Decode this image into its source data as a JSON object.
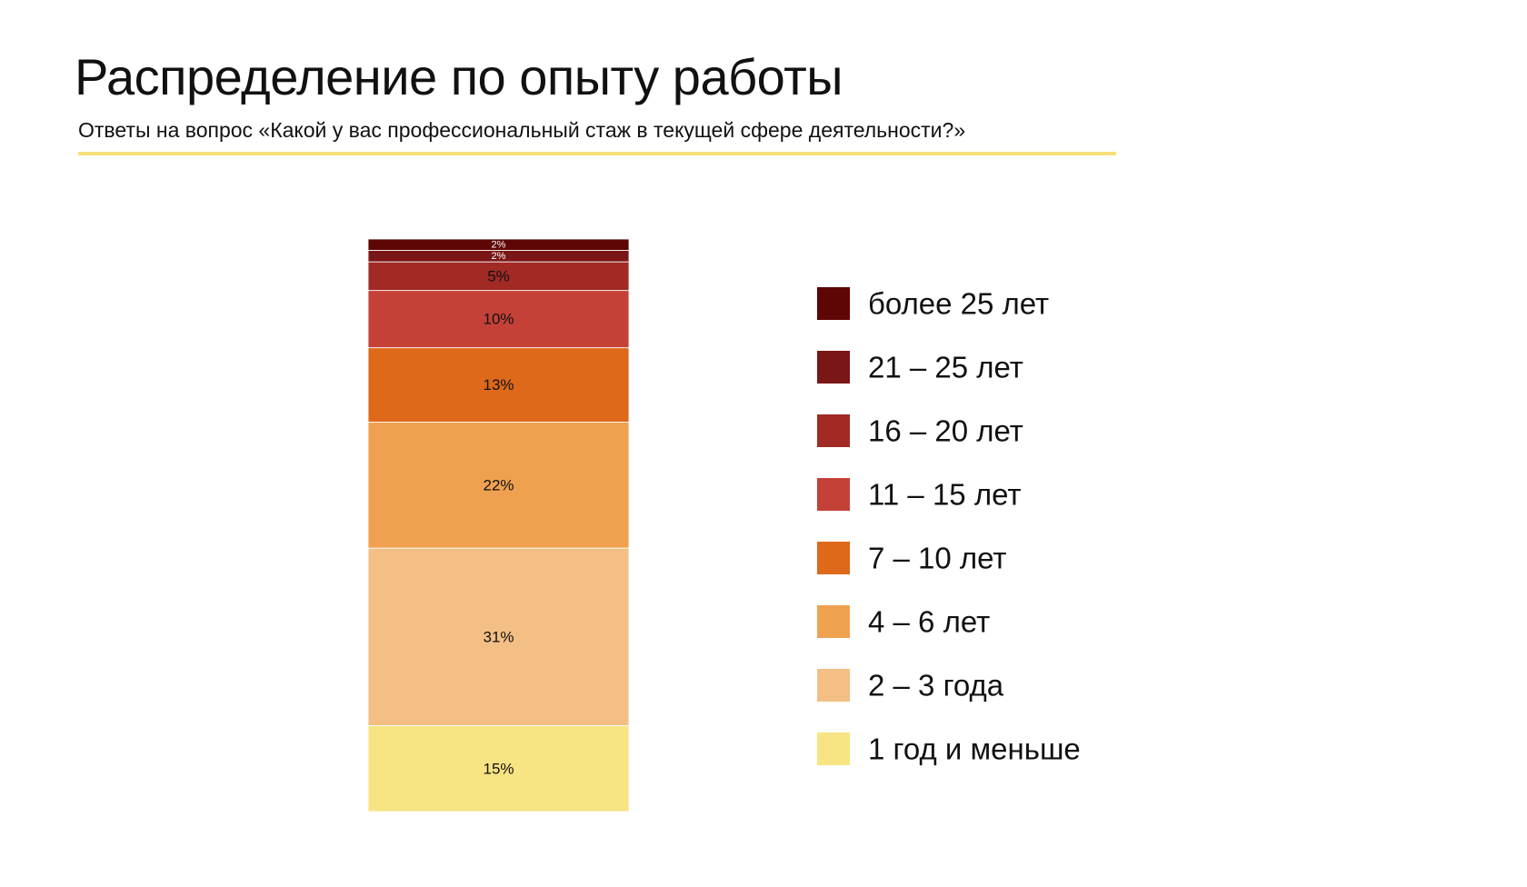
{
  "title": "Распределение по опыту работы",
  "subtitle": "Ответы на вопрос «Какой у вас профессиональный стаж в текущей сфере деятельности?»",
  "accent_color": "#f7e07a",
  "chart_data": {
    "type": "bar",
    "stacked": true,
    "categories": [
      ""
    ],
    "ylim": [
      0,
      100
    ],
    "legend_position": "right",
    "series": [
      {
        "name": "более 25 лет",
        "values": [
          2
        ],
        "label": "2%",
        "color": "#5e0505"
      },
      {
        "name": "21 – 25 лет",
        "values": [
          2
        ],
        "label": "2%",
        "color": "#7a1616"
      },
      {
        "name": "16 – 20 лет",
        "values": [
          5
        ],
        "label": "5%",
        "color": "#a12a25"
      },
      {
        "name": "11 – 15 лет",
        "values": [
          10
        ],
        "label": "10%",
        "color": "#c44138"
      },
      {
        "name": "7 – 10 лет",
        "values": [
          13
        ],
        "label": "13%",
        "color": "#de691b"
      },
      {
        "name": "4 – 6 лет",
        "values": [
          22
        ],
        "label": "22%",
        "color": "#f0a150"
      },
      {
        "name": "2 – 3 года",
        "values": [
          31
        ],
        "label": "31%",
        "color": "#f3bf84"
      },
      {
        "name": "1 год и меньше",
        "values": [
          15
        ],
        "label": "15%",
        "color": "#f7e482"
      }
    ]
  }
}
